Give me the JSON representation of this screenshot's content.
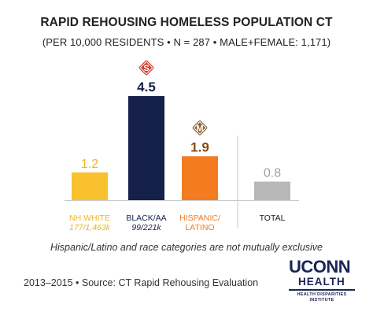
{
  "chart_data": {
    "type": "bar",
    "title": "RAPID REHOUSING HOMELESS POPULATION CT",
    "subtitle": "(PER 10,000 RESIDENTS • N = 287 • MALE+FEMALE: 1,171)",
    "categories": [
      "NH WHITE",
      "BLACK/AA",
      "HISPANIC/ LATINO",
      "TOTAL"
    ],
    "sublabels": [
      "177/1,463k",
      "99/221k",
      "",
      ""
    ],
    "values": [
      1.2,
      4.5,
      1.9,
      0.8
    ],
    "value_labels": [
      "1.2",
      "4.5",
      "1.9",
      "0.8"
    ],
    "colors": [
      "#f9c12d",
      "#15204b",
      "#f47b20",
      "#b7b7b7"
    ],
    "badges": [
      {
        "category_index": 1,
        "letter": "S",
        "color": "#c8412f"
      },
      {
        "category_index": 2,
        "letter": "M",
        "color": "#8d6237"
      }
    ],
    "ylim": [
      0,
      4.5
    ],
    "grid": false,
    "xlabel": "",
    "ylabel": ""
  },
  "note": "Hispanic/Latino and race categories are not mutually exclusive",
  "source": "2013–2015 •  Source: CT Rapid Rehousing Evaluation",
  "logo": {
    "line1": "UCONN",
    "line2": "HEALTH",
    "line3": "HEALTH DISPARITIES INSTITUTE"
  }
}
